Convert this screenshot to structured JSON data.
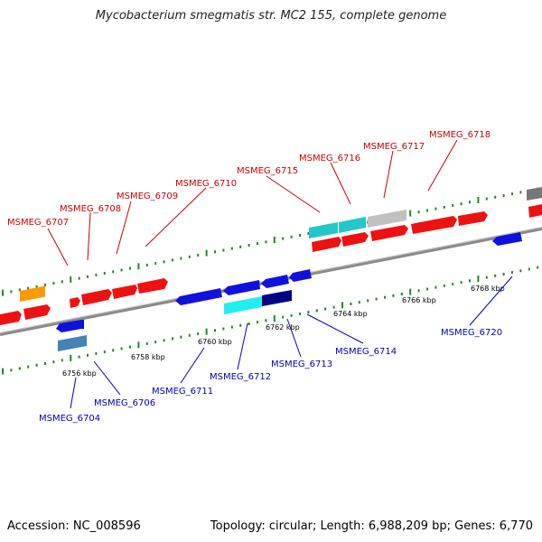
{
  "title": "Mycobacterium smegmatis str. MC2 155, complete genome",
  "footer": {
    "accession": "Accession: NC_008596",
    "topology": "Topology: circular; Length: 6,988,209 bp; Genes: 6,770"
  },
  "colors": {
    "forward_label": "#cc0000",
    "reverse_label": "#0000bb",
    "backbone": "#888888",
    "tick": "#1f8a1f"
  },
  "scale_labels": [
    "6756 kbp",
    "6758 kbp",
    "6760 kbp",
    "6762 kbp",
    "6764 kbp",
    "6766 kbp",
    "6768 kbp"
  ],
  "forward_genes": [
    "MSMEG_6707",
    "MSMEG_6708",
    "MSMEG_6709",
    "MSMEG_6710",
    "MSMEG_6715",
    "MSMEG_6716",
    "MSMEG_6717",
    "MSMEG_6718"
  ],
  "reverse_genes": [
    "MSMEG_6704",
    "MSMEG_6706",
    "MSMEG_6711",
    "MSMEG_6712",
    "MSMEG_6713",
    "MSMEG_6714",
    "MSMEG_6720"
  ]
}
